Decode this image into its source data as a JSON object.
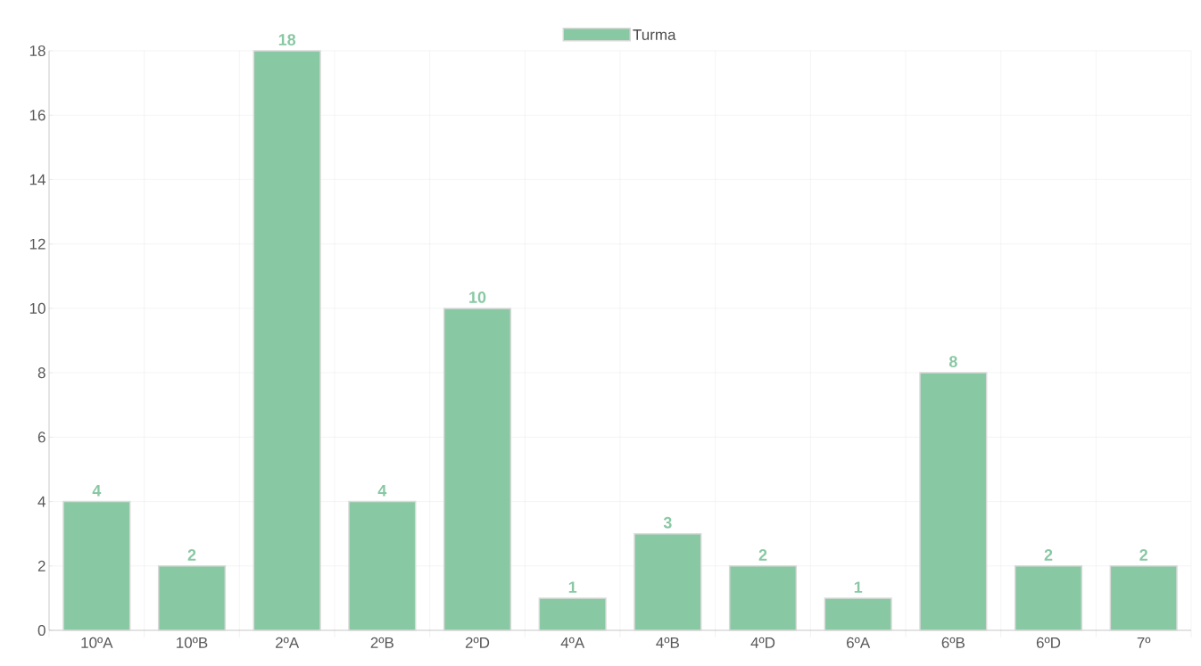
{
  "chart_data": {
    "type": "bar",
    "categories": [
      "10ºA",
      "10ºB",
      "2ºA",
      "2ºB",
      "2ºD",
      "4ºA",
      "4ºB",
      "4ºD",
      "6ºA",
      "6ºB",
      "6ºD",
      "7º"
    ],
    "series": [
      {
        "name": "Turma",
        "color": "#88c8a3",
        "values": [
          4,
          2,
          18,
          4,
          10,
          1,
          3,
          2,
          1,
          8,
          2,
          2
        ]
      }
    ],
    "ylim": [
      0,
      18
    ],
    "yticks": [
      0,
      2,
      4,
      6,
      8,
      10,
      12,
      14,
      16,
      18
    ],
    "grid": true,
    "legend": "top",
    "data_labels": true
  }
}
